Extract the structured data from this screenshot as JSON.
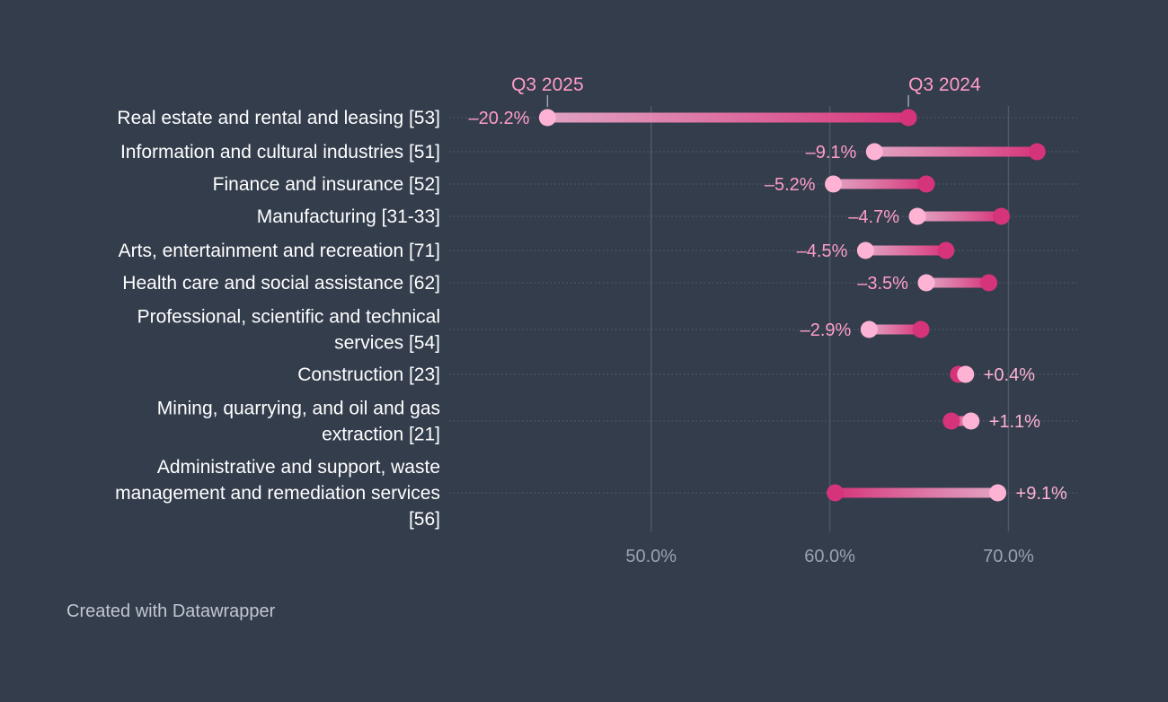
{
  "chart_data": {
    "type": "dumbbell",
    "series": [
      {
        "name": "Q3 2024",
        "color": "#d6347a"
      },
      {
        "name": "Q3 2025",
        "color": "#ffb3d4"
      }
    ],
    "categories": [
      {
        "label": [
          "Real estate and rental and leasing [53]"
        ],
        "q3_2024": 64.4,
        "q3_2025": 44.2,
        "change": "–20.2%"
      },
      {
        "label": [
          "Information and cultural industries [51]"
        ],
        "q3_2024": 71.6,
        "q3_2025": 62.5,
        "change": "–9.1%"
      },
      {
        "label": [
          "Finance and insurance [52]"
        ],
        "q3_2024": 65.4,
        "q3_2025": 60.2,
        "change": "–5.2%"
      },
      {
        "label": [
          "Manufacturing [31-33]"
        ],
        "q3_2024": 69.6,
        "q3_2025": 64.9,
        "change": "–4.7%"
      },
      {
        "label": [
          "Arts, entertainment and recreation [71]"
        ],
        "q3_2024": 66.5,
        "q3_2025": 62.0,
        "change": "–4.5%"
      },
      {
        "label": [
          "Health care and social assistance [62]"
        ],
        "q3_2024": 68.9,
        "q3_2025": 65.4,
        "change": "–3.5%"
      },
      {
        "label": [
          "Professional, scientific and technical",
          "services [54]"
        ],
        "q3_2024": 65.1,
        "q3_2025": 62.2,
        "change": "–2.9%"
      },
      {
        "label": [
          "Construction [23]"
        ],
        "q3_2024": 67.2,
        "q3_2025": 67.6,
        "change": "+0.4%"
      },
      {
        "label": [
          "Mining, quarrying, and oil and gas",
          "extraction [21]"
        ],
        "q3_2024": 66.8,
        "q3_2025": 67.9,
        "change": "+1.1%"
      },
      {
        "label": [
          "Administrative and support, waste",
          "management and remediation services",
          "[56]"
        ],
        "q3_2024": 60.3,
        "q3_2025": 69.4,
        "change": "+9.1%"
      }
    ],
    "x_ticks": [
      {
        "value": 50,
        "label": "50.0%"
      },
      {
        "value": 60,
        "label": "60.0%"
      },
      {
        "value": 70,
        "label": "70.0%"
      }
    ],
    "xlim": [
      38.7,
      74
    ],
    "grid": true
  },
  "footer": {
    "credit": "Created with Datawrapper"
  }
}
